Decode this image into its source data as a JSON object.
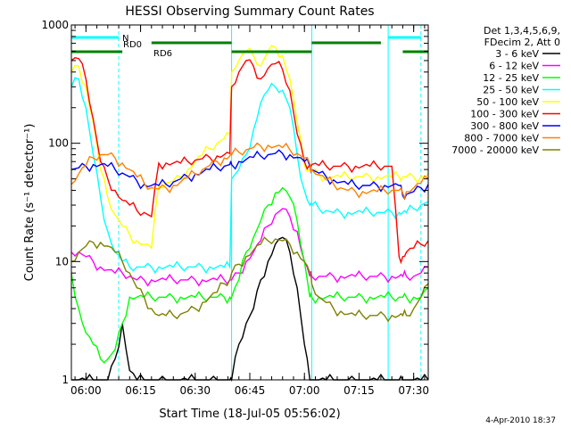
{
  "chart_data": {
    "type": "line",
    "title": "HESSI Observing Summary Count Rates",
    "xlabel": "Start Time (18-Jul-05 05:56:02)",
    "ylabel": "Count Rate (s⁻¹ detector⁻¹)",
    "yscale": "log",
    "ylim": [
      1,
      1000
    ],
    "xlim_minutes_after_0556": [
      0,
      98
    ],
    "x_tick_labels": [
      "06:00",
      "06:15",
      "06:30",
      "06:45",
      "07:00",
      "07:15",
      "07:30"
    ],
    "y_tick_labels": [
      "1",
      "10",
      "100",
      "1000"
    ],
    "grid": false,
    "legend_position": "right",
    "legend_header": [
      "Det 1,3,4,5,6,9,",
      "FDecim 2, Att 0"
    ],
    "footer_date": "4-Apr-2010 18:37",
    "flags": [
      {
        "label": "N",
        "color": "#00ffff",
        "ranges": [
          [
            0,
            13
          ],
          [
            87,
            96
          ]
        ]
      },
      {
        "label": "RD0",
        "color": "#008000",
        "ranges": [
          [
            22,
            44
          ],
          [
            66,
            85
          ]
        ]
      },
      {
        "label": "RD6",
        "color": "#008000",
        "ranges": [
          [
            0,
            14
          ],
          [
            44,
            66
          ],
          [
            91,
            98
          ]
        ]
      }
    ],
    "vertical_markers": {
      "solid": [
        0,
        44,
        66,
        87
      ],
      "dashed": [
        13,
        96
      ]
    },
    "x": [
      0,
      2,
      4,
      6,
      8,
      10,
      12,
      14,
      16,
      18,
      20,
      22,
      24,
      26,
      28,
      30,
      32,
      34,
      36,
      38,
      40,
      42,
      43.5,
      44,
      46,
      48,
      50,
      52,
      54,
      56,
      58,
      60,
      62,
      64,
      65.5,
      66,
      68,
      70,
      72,
      74,
      76,
      78,
      80,
      82,
      84,
      86,
      88,
      90,
      91,
      92,
      94,
      96,
      98
    ],
    "series": [
      {
        "name": "3 - 6 keV",
        "color": "#000000",
        "values": [
          1,
          1,
          1,
          1,
          1,
          1,
          1.5,
          3,
          1.2,
          1,
          1,
          1,
          1,
          1,
          1,
          1,
          1,
          1,
          1,
          1,
          1,
          1,
          1,
          1,
          2,
          3,
          4,
          7,
          10,
          14,
          16,
          12,
          6,
          2,
          1,
          1,
          1,
          1,
          1,
          1,
          1,
          1,
          1,
          1,
          1,
          1,
          1,
          1,
          1,
          1,
          1,
          1,
          1
        ]
      },
      {
        "name": "6 - 12 keV",
        "color": "#ff00ff",
        "values": [
          12,
          12,
          11,
          10,
          9,
          8.5,
          8,
          8,
          7.5,
          7,
          7,
          7,
          7,
          7,
          7,
          7,
          7,
          7,
          7,
          7,
          7,
          7,
          7,
          7,
          8,
          10,
          12,
          15,
          20,
          25,
          28,
          24,
          18,
          10,
          7.5,
          7.5,
          7.5,
          7.5,
          7.5,
          7.5,
          7.5,
          7.5,
          7.5,
          7.5,
          7.5,
          7.5,
          7.5,
          7.5,
          7.5,
          7.5,
          7.5,
          8,
          9
        ]
      },
      {
        "name": "12 - 25 keV",
        "color": "#00ff00",
        "values": [
          8,
          4,
          2.5,
          2,
          1.5,
          1.5,
          1.8,
          3,
          5,
          5,
          5,
          5,
          5,
          5,
          5,
          5,
          5,
          5,
          5,
          5,
          5,
          5,
          5,
          5,
          7,
          12,
          16,
          22,
          30,
          38,
          42,
          35,
          22,
          10,
          5,
          5,
          5,
          5,
          5,
          5,
          5,
          5,
          5,
          5,
          5,
          5,
          5,
          5,
          5,
          5,
          5,
          5,
          6
        ]
      },
      {
        "name": "25 - 50 keV",
        "color": "#00ffff",
        "values": [
          300,
          350,
          200,
          80,
          35,
          18,
          12,
          10,
          9,
          9,
          9,
          9,
          9,
          9,
          9,
          9,
          9,
          9,
          9,
          9,
          9,
          9,
          9,
          50,
          60,
          80,
          130,
          220,
          280,
          300,
          280,
          200,
          80,
          40,
          30,
          30,
          28,
          27,
          26,
          26,
          26,
          26,
          26,
          26,
          26,
          26,
          26,
          26,
          26,
          26,
          28,
          30,
          32
        ]
      },
      {
        "name": "50 - 100 keV",
        "color": "#ffff00",
        "values": [
          400,
          450,
          300,
          150,
          60,
          35,
          25,
          20,
          17,
          15,
          14,
          13,
          44,
          46,
          48,
          52,
          60,
          70,
          80,
          90,
          100,
          110,
          120,
          400,
          500,
          600,
          550,
          450,
          600,
          650,
          550,
          350,
          150,
          65,
          60,
          58,
          55,
          52,
          52,
          52,
          52,
          52,
          52,
          52,
          52,
          52,
          52,
          52,
          52,
          52,
          52,
          52,
          55
        ]
      },
      {
        "name": "100 - 300 keV",
        "color": "#ff0000",
        "values": [
          500,
          520,
          350,
          160,
          70,
          50,
          40,
          33,
          30,
          27,
          26,
          24,
          68,
          68,
          68,
          68,
          70,
          72,
          74,
          76,
          78,
          80,
          82,
          300,
          400,
          500,
          450,
          350,
          430,
          470,
          420,
          280,
          120,
          70,
          66,
          66,
          65,
          64,
          64,
          64,
          64,
          64,
          64,
          64,
          64,
          64,
          64,
          11,
          11,
          12,
          13,
          14,
          15
        ]
      },
      {
        "name": "300 - 800 keV",
        "color": "#0000ff",
        "values": [
          60,
          62,
          64,
          66,
          66,
          64,
          60,
          56,
          52,
          48,
          45,
          44,
          44,
          45,
          47,
          50,
          52,
          55,
          57,
          60,
          62,
          64,
          66,
          66,
          70,
          73,
          76,
          78,
          80,
          82,
          82,
          80,
          76,
          70,
          64,
          60,
          56,
          52,
          49,
          47,
          45,
          44,
          44,
          44,
          44,
          44,
          44,
          44,
          36,
          37,
          39,
          42,
          45
        ]
      },
      {
        "name": "800 - 7000 keV",
        "color": "#ff8000",
        "values": [
          45,
          55,
          65,
          75,
          80,
          80,
          75,
          68,
          60,
          52,
          46,
          42,
          41,
          42,
          44,
          47,
          51,
          55,
          60,
          65,
          70,
          75,
          78,
          80,
          84,
          88,
          92,
          95,
          96,
          94,
          92,
          88,
          82,
          75,
          67,
          60,
          54,
          49,
          45,
          42,
          40,
          39,
          39,
          39,
          39,
          40,
          40,
          40,
          38,
          39,
          42,
          46,
          50
        ]
      },
      {
        "name": "7000 - 20000 keV",
        "color": "#808000",
        "values": [
          10,
          12,
          13.5,
          14.5,
          14.5,
          13.5,
          12,
          10,
          8,
          6,
          5,
          4,
          3.5,
          3.5,
          3.5,
          3.6,
          3.8,
          4,
          4.5,
          5,
          5.5,
          6.5,
          7,
          8,
          9.5,
          11,
          12.5,
          14,
          15,
          15.5,
          15,
          14,
          12,
          10,
          8,
          6.5,
          5,
          4.5,
          4,
          3.8,
          3.6,
          3.5,
          3.5,
          3.5,
          3.5,
          3.5,
          3.5,
          3.5,
          3.5,
          3.5,
          4,
          5,
          6.5
        ]
      }
    ]
  }
}
